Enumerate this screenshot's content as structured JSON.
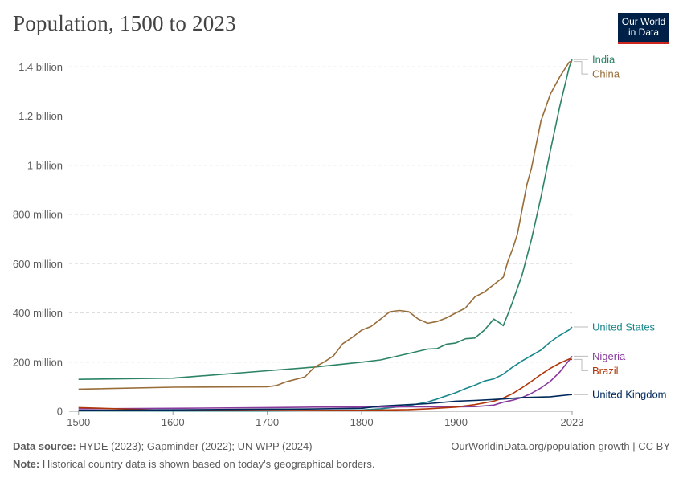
{
  "header": {
    "title": "Population, 1500 to 2023",
    "logo_line1": "Our World",
    "logo_line2": "in Data"
  },
  "footer": {
    "source_label": "Data source:",
    "source_text": "HYDE (2023); Gapminder (2022); UN WPP (2024)",
    "note_label": "Note:",
    "note_text": "Historical country data is shown based on today's geographical borders.",
    "credit": "OurWorldinData.org/population-growth | CC BY"
  },
  "chart_data": {
    "type": "line",
    "title": "Population, 1500 to 2023",
    "xlabel": "",
    "ylabel": "",
    "xlim": [
      1490,
      2023
    ],
    "ylim": [
      0,
      1450000000
    ],
    "x_ticks": [
      1500,
      1600,
      1700,
      1800,
      1900,
      2023
    ],
    "x_tick_labels": [
      "1500",
      "1600",
      "1700",
      "1800",
      "1900",
      "2023"
    ],
    "y_ticks": [
      0,
      200000000,
      400000000,
      600000000,
      800000000,
      1000000000,
      1200000000,
      1400000000
    ],
    "y_tick_labels": [
      "0",
      "200 million",
      "400 million",
      "600 million",
      "800 million",
      "1 billion",
      "1.2 billion",
      "1.4 billion"
    ],
    "grid": "horizontal dashed",
    "legend": "right-side line labels",
    "series": [
      {
        "name": "India",
        "color": "#2c8465",
        "points": [
          [
            1500,
            130000000
          ],
          [
            1600,
            135000000
          ],
          [
            1700,
            165000000
          ],
          [
            1750,
            180000000
          ],
          [
            1800,
            200000000
          ],
          [
            1820,
            209000000
          ],
          [
            1850,
            235000000
          ],
          [
            1870,
            253000000
          ],
          [
            1880,
            255000000
          ],
          [
            1890,
            273000000
          ],
          [
            1900,
            278000000
          ],
          [
            1910,
            295000000
          ],
          [
            1920,
            298000000
          ],
          [
            1930,
            330000000
          ],
          [
            1940,
            375000000
          ],
          [
            1946,
            360000000
          ],
          [
            1950,
            348000000
          ],
          [
            1955,
            395000000
          ],
          [
            1960,
            445000000
          ],
          [
            1970,
            555000000
          ],
          [
            1980,
            700000000
          ],
          [
            1990,
            870000000
          ],
          [
            2000,
            1060000000
          ],
          [
            2010,
            1240000000
          ],
          [
            2020,
            1400000000
          ],
          [
            2023,
            1430000000
          ]
        ]
      },
      {
        "name": "China",
        "color": "#986d39",
        "points": [
          [
            1500,
            90000000
          ],
          [
            1600,
            98000000
          ],
          [
            1700,
            100000000
          ],
          [
            1710,
            105000000
          ],
          [
            1720,
            120000000
          ],
          [
            1740,
            140000000
          ],
          [
            1750,
            180000000
          ],
          [
            1760,
            200000000
          ],
          [
            1770,
            225000000
          ],
          [
            1780,
            275000000
          ],
          [
            1790,
            300000000
          ],
          [
            1800,
            330000000
          ],
          [
            1810,
            345000000
          ],
          [
            1820,
            375000000
          ],
          [
            1830,
            405000000
          ],
          [
            1840,
            410000000
          ],
          [
            1850,
            405000000
          ],
          [
            1860,
            375000000
          ],
          [
            1870,
            358000000
          ],
          [
            1880,
            365000000
          ],
          [
            1890,
            380000000
          ],
          [
            1900,
            400000000
          ],
          [
            1910,
            420000000
          ],
          [
            1920,
            465000000
          ],
          [
            1930,
            485000000
          ],
          [
            1940,
            515000000
          ],
          [
            1950,
            545000000
          ],
          [
            1955,
            610000000
          ],
          [
            1960,
            660000000
          ],
          [
            1965,
            720000000
          ],
          [
            1970,
            820000000
          ],
          [
            1975,
            920000000
          ],
          [
            1980,
            990000000
          ],
          [
            1990,
            1180000000
          ],
          [
            2000,
            1290000000
          ],
          [
            2010,
            1360000000
          ],
          [
            2020,
            1420000000
          ],
          [
            2023,
            1422000000
          ]
        ]
      },
      {
        "name": "United States",
        "color": "#18878c",
        "points": [
          [
            1500,
            2000000
          ],
          [
            1700,
            1000000
          ],
          [
            1800,
            5300000
          ],
          [
            1820,
            10000000
          ],
          [
            1850,
            23000000
          ],
          [
            1870,
            38000000
          ],
          [
            1880,
            50000000
          ],
          [
            1900,
            76000000
          ],
          [
            1910,
            92000000
          ],
          [
            1920,
            106000000
          ],
          [
            1930,
            123000000
          ],
          [
            1940,
            132000000
          ],
          [
            1950,
            151000000
          ],
          [
            1960,
            180000000
          ],
          [
            1970,
            205000000
          ],
          [
            1980,
            227000000
          ],
          [
            1990,
            249000000
          ],
          [
            2000,
            282000000
          ],
          [
            2010,
            309000000
          ],
          [
            2020,
            331000000
          ],
          [
            2023,
            343000000
          ]
        ]
      },
      {
        "name": "Nigeria",
        "color": "#883b9c",
        "points": [
          [
            1500,
            10000000
          ],
          [
            1600,
            12000000
          ],
          [
            1700,
            15000000
          ],
          [
            1750,
            17000000
          ],
          [
            1800,
            17000000
          ],
          [
            1850,
            18000000
          ],
          [
            1900,
            18000000
          ],
          [
            1920,
            19000000
          ],
          [
            1930,
            22000000
          ],
          [
            1940,
            25000000
          ],
          [
            1950,
            37000000
          ],
          [
            1960,
            45000000
          ],
          [
            1970,
            56000000
          ],
          [
            1980,
            73000000
          ],
          [
            1990,
            95000000
          ],
          [
            2000,
            122000000
          ],
          [
            2010,
            160000000
          ],
          [
            2020,
            208000000
          ],
          [
            2023,
            224000000
          ]
        ]
      },
      {
        "name": "Brazil",
        "color": "#b13507",
        "points": [
          [
            1500,
            15000000
          ],
          [
            1600,
            3000000
          ],
          [
            1700,
            3000000
          ],
          [
            1800,
            4000000
          ],
          [
            1850,
            7000000
          ],
          [
            1870,
            10000000
          ],
          [
            1900,
            17000000
          ],
          [
            1920,
            27000000
          ],
          [
            1940,
            41000000
          ],
          [
            1950,
            54000000
          ],
          [
            1960,
            72000000
          ],
          [
            1970,
            96000000
          ],
          [
            1980,
            122000000
          ],
          [
            1990,
            150000000
          ],
          [
            2000,
            175000000
          ],
          [
            2010,
            196000000
          ],
          [
            2020,
            213000000
          ],
          [
            2023,
            211000000
          ]
        ]
      },
      {
        "name": "United Kingdom",
        "color": "#00295b",
        "points": [
          [
            1500,
            4000000
          ],
          [
            1600,
            6000000
          ],
          [
            1700,
            8500000
          ],
          [
            1750,
            9500000
          ],
          [
            1800,
            12000000
          ],
          [
            1820,
            21000000
          ],
          [
            1850,
            27000000
          ],
          [
            1870,
            31000000
          ],
          [
            1900,
            41000000
          ],
          [
            1920,
            44000000
          ],
          [
            1940,
            48000000
          ],
          [
            1950,
            50000000
          ],
          [
            1970,
            56000000
          ],
          [
            2000,
            59000000
          ],
          [
            2010,
            63000000
          ],
          [
            2020,
            67000000
          ],
          [
            2023,
            68000000
          ]
        ]
      }
    ]
  }
}
